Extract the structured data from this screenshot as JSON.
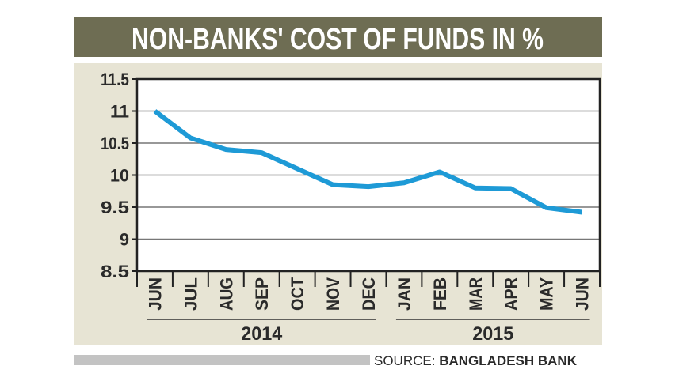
{
  "chart_data": {
    "type": "line",
    "title": "NON-BANKS' COST OF FUNDS IN %",
    "categories": [
      "JUN",
      "JUL",
      "AUG",
      "SEP",
      "OCT",
      "NOV",
      "DEC",
      "JAN",
      "FEB",
      "MAR",
      "APR",
      "MAY",
      "JUN"
    ],
    "year_groups": [
      {
        "label": "2014",
        "months": [
          "JUN",
          "JUL",
          "AUG",
          "SEP",
          "OCT",
          "NOV",
          "DEC"
        ]
      },
      {
        "label": "2015",
        "months": [
          "JAN",
          "FEB",
          "MAR",
          "APR",
          "MAY",
          "JUN"
        ]
      }
    ],
    "values": [
      11.0,
      10.58,
      10.4,
      10.35,
      10.1,
      9.85,
      9.82,
      9.88,
      10.05,
      9.8,
      9.79,
      9.49,
      9.42
    ],
    "ylim": [
      8.5,
      11.5
    ],
    "yticks": [
      "8.5",
      "9",
      "9.5",
      "10",
      "10.5",
      "11",
      "11.5"
    ],
    "grid": true,
    "line_color": "#1e9ad6"
  },
  "source": {
    "prefix": "SOURCE:",
    "name": "BANGLADESH BANK"
  },
  "colors": {
    "title_bar": "#6e6d53",
    "panel": "#e7e4d4",
    "source_bar": "#c3c3c3"
  }
}
